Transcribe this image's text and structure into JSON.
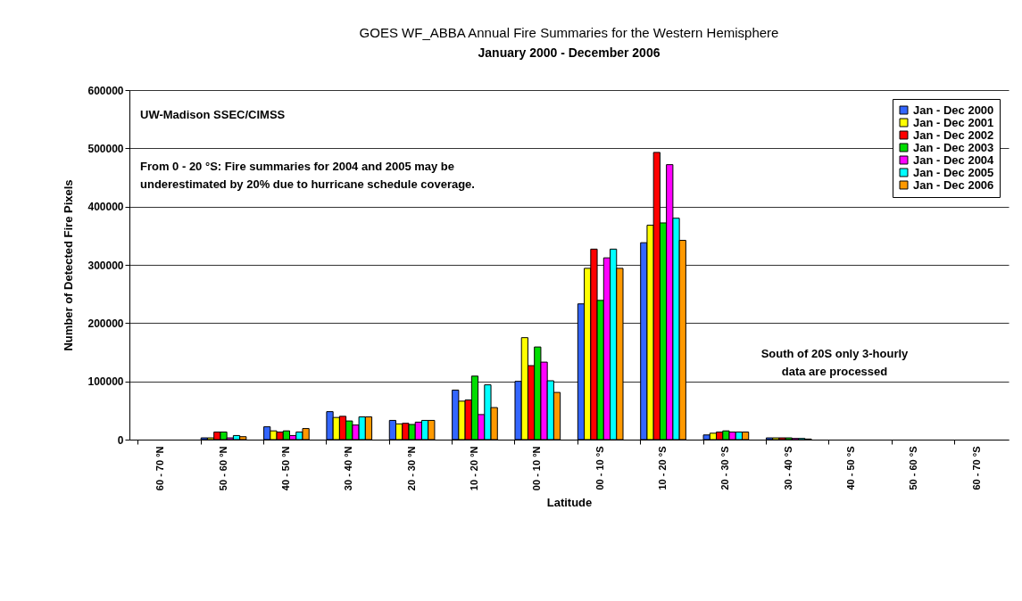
{
  "chart_data": {
    "type": "bar",
    "title": "GOES WF_ABBA Annual Fire Summaries for the Western Hemisphere",
    "subtitle": "January 2000 - December 2006",
    "xlabel": "Latitude",
    "ylabel": "Number of Detected Fire Pixels",
    "categories": [
      "60 - 70 °N",
      "50 - 60 °N",
      "40 - 50 °N",
      "30 - 40 °N",
      "20 - 30 °N",
      "10 - 20 °N",
      "00 - 10 °N",
      "00 - 10 °S",
      "10 - 20 °S",
      "20 - 30 °S",
      "30 - 40 °S",
      "40 - 50 °S",
      "50 - 60 °S",
      "60 - 70 °S"
    ],
    "series": [
      {
        "name": "Jan - Dec 2000",
        "color": "#3366ff",
        "values": [
          0,
          3000,
          22000,
          48000,
          33000,
          85000,
          100000,
          233000,
          338000,
          8000,
          3000,
          0,
          0,
          0
        ]
      },
      {
        "name": "Jan - Dec 2001",
        "color": "#ffff00",
        "values": [
          0,
          3000,
          15000,
          38000,
          27000,
          66000,
          175000,
          294000,
          368000,
          11000,
          3000,
          0,
          0,
          0
        ]
      },
      {
        "name": "Jan - Dec 2002",
        "color": "#ff0000",
        "values": [
          0,
          13000,
          13000,
          40000,
          28000,
          68000,
          127000,
          327000,
          493000,
          13000,
          3000,
          0,
          0,
          0
        ]
      },
      {
        "name": "Jan - Dec 2003",
        "color": "#00dd00",
        "values": [
          0,
          13000,
          15000,
          32000,
          26000,
          109000,
          159000,
          239000,
          372000,
          15000,
          3000,
          0,
          0,
          0
        ]
      },
      {
        "name": "Jan - Dec 2004",
        "color": "#ff00ff",
        "values": [
          0,
          3000,
          7000,
          25000,
          30000,
          43000,
          133000,
          312000,
          472000,
          13000,
          2000,
          0,
          0,
          0
        ]
      },
      {
        "name": "Jan - Dec 2005",
        "color": "#00ffff",
        "values": [
          0,
          7000,
          13000,
          39000,
          33000,
          94000,
          101000,
          327000,
          380000,
          13000,
          2000,
          0,
          0,
          0
        ]
      },
      {
        "name": "Jan - Dec 2006",
        "color": "#ff9900",
        "values": [
          0,
          5000,
          19000,
          39000,
          33000,
          55000,
          81000,
          294000,
          342000,
          13000,
          1000,
          0,
          0,
          0
        ]
      }
    ],
    "ylim": [
      0,
      600000
    ],
    "yticks": [
      0,
      100000,
      200000,
      300000,
      400000,
      500000,
      600000
    ],
    "grid": "y",
    "legend": "top right",
    "annotations": [
      "UW-Madison SSEC/CIMSS",
      "From 0 - 20 °S:  Fire summaries for 2004 and 2005 may be\nunderestimated by 20% due to hurricane schedule coverage.",
      "South of 20S only 3-hourly\ndata are processed"
    ]
  }
}
